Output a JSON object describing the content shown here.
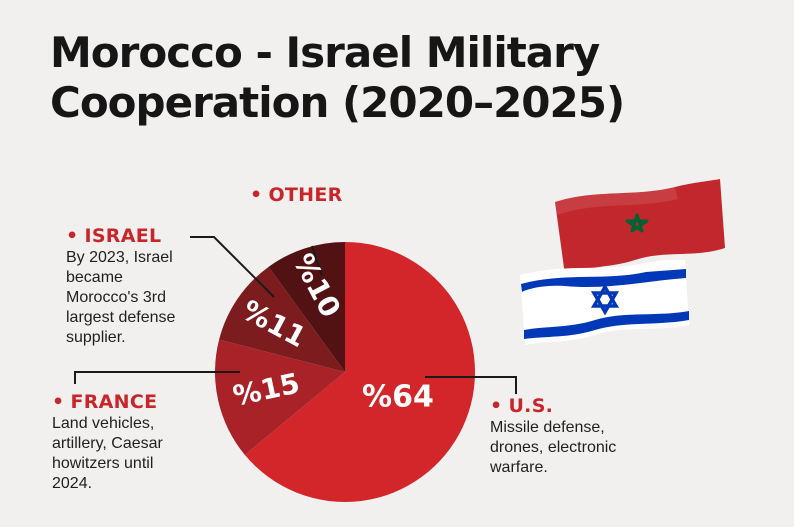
{
  "header": {
    "title_line1": "Morocco - Israel Military",
    "title_line2": "Cooperation (2020–2025)"
  },
  "chart_data": {
    "type": "pie",
    "slices": [
      {
        "label": "U.S.",
        "value": 64,
        "value_label": "%64",
        "description": "Missile defense, drones, electronic warfare.",
        "color": "#d3262b"
      },
      {
        "label": "FRANCE",
        "value": 15,
        "value_label": "%15",
        "description": "Land vehicles, artillery, Caesar howitzers until 2024.",
        "color": "#a82228"
      },
      {
        "label": "ISRAEL",
        "value": 11,
        "value_label": "%11",
        "description": "By 2023, Israel became Morocco's 3rd largest defense supplier.",
        "color": "#7c1c1f"
      },
      {
        "label": "OTHER",
        "value": 10,
        "value_label": "%10",
        "description": "",
        "color": "#521214"
      }
    ]
  },
  "callouts": {
    "bullet": "•",
    "other": {
      "title": "OTHER"
    },
    "israel": {
      "title": "ISRAEL",
      "desc_lines": [
        "By 2023, Israel",
        "became",
        "Morocco's 3rd",
        "largest defense",
        "supplier."
      ]
    },
    "france": {
      "title": "FRANCE",
      "desc_lines": [
        "Land vehicles,",
        "artillery, Caesar",
        "howitzers until",
        "2024."
      ]
    },
    "us": {
      "title": "U.S.",
      "desc_lines": [
        "Missile defense,",
        "drones, electronic",
        "warfare."
      ]
    }
  },
  "flags": [
    {
      "name": "Morocco",
      "field_color": "#c1272d",
      "emblem_color": "#006233"
    },
    {
      "name": "Israel",
      "field_color": "#ffffff",
      "emblem_color": "#0038b8"
    }
  ]
}
